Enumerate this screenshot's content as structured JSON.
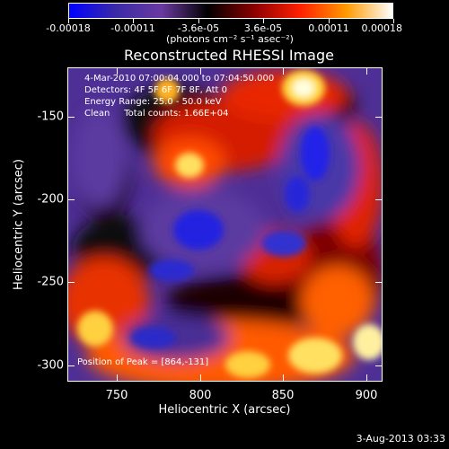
{
  "colorbar": {
    "tick_labels": [
      "-0.00018",
      "-0.00011",
      "-3.6e-05",
      "3.6e-05",
      "0.00011",
      "0.00018"
    ],
    "units": "(photons cm⁻² s⁻¹ asec⁻²)",
    "colors": [
      "#0000ff",
      "#3a2aa8",
      "#6a3aa0",
      "#000000",
      "#8b0000",
      "#ff2000",
      "#ff9a00",
      "#ffffff"
    ]
  },
  "title": "Reconstructed RHESSI Image",
  "info": {
    "time": "4-Mar-2010 07:00:04.000 to 07:04:50.000",
    "detectors": "Detectors: 4F 5F 6F 7F 8F, Att 0",
    "energy": "Energy Range: 25.0 - 50.0 keV",
    "clean": "Clean     Total counts: 1.66E+04"
  },
  "peak": "Position of Peak = [864,-131]",
  "axes": {
    "xlabel": "Heliocentric X (arcsec)",
    "ylabel": "Heliocentric Y (arcsec)",
    "xticks": [
      "750",
      "800",
      "850",
      "900"
    ],
    "yticks": [
      "-150",
      "-200",
      "-250",
      "-300"
    ],
    "xrange": [
      720,
      910
    ],
    "yrange": [
      -310,
      -120
    ]
  },
  "datestamp": "3-Aug-2013 03:33"
}
